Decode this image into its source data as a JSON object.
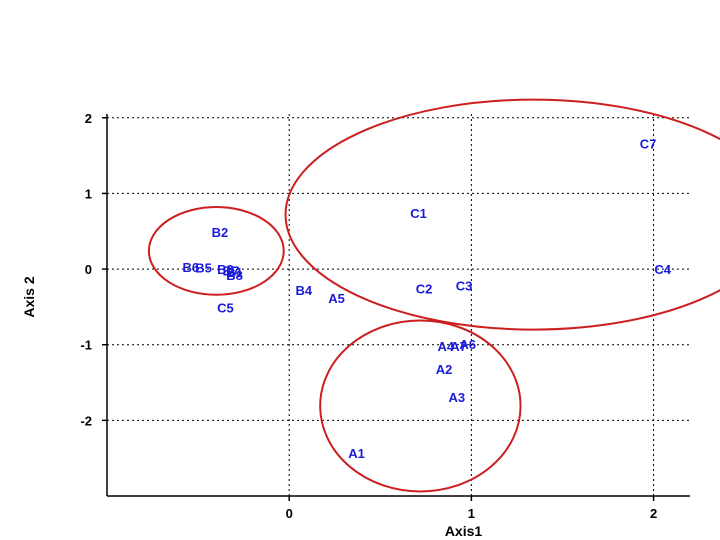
{
  "chart_data": {
    "type": "scatter",
    "title": "",
    "xlabel": "Axis1",
    "ylabel": "Axis 2",
    "xlim": [
      -1,
      2.2
    ],
    "ylim": [
      -3,
      2.05
    ],
    "xticks": [
      0,
      1,
      2
    ],
    "yticks": [
      -2,
      -1,
      0,
      1,
      2
    ],
    "grid": true,
    "points": [
      {
        "label": "C7",
        "x": 1.97,
        "y": 1.66
      },
      {
        "label": "C1",
        "x": 0.71,
        "y": 0.74
      },
      {
        "label": "B2",
        "x": -0.38,
        "y": 0.49
      },
      {
        "label": "B6",
        "x": -0.54,
        "y": 0.03
      },
      {
        "label": "B5",
        "x": -0.47,
        "y": 0.02
      },
      {
        "label": "B3",
        "x": -0.35,
        "y": 0.0
      },
      {
        "label": "B7",
        "x": -0.32,
        "y": -0.02
      },
      {
        "label": "B1",
        "x": -0.3,
        "y": -0.04
      },
      {
        "label": "B8",
        "x": -0.3,
        "y": -0.08
      },
      {
        "label": "C4",
        "x": 2.05,
        "y": 0.0
      },
      {
        "label": "C3",
        "x": 0.96,
        "y": -0.22
      },
      {
        "label": "C2",
        "x": 0.74,
        "y": -0.26
      },
      {
        "label": "B4",
        "x": 0.08,
        "y": -0.28
      },
      {
        "label": "A5",
        "x": 0.26,
        "y": -0.38
      },
      {
        "label": "C5",
        "x": -0.35,
        "y": -0.51
      },
      {
        "label": "A4",
        "x": 0.86,
        "y": -1.02
      },
      {
        "label": "A7",
        "x": 0.93,
        "y": -1.02
      },
      {
        "label": "A6",
        "x": 0.98,
        "y": -0.99
      },
      {
        "label": "A2",
        "x": 0.85,
        "y": -1.32
      },
      {
        "label": "A3",
        "x": 0.92,
        "y": -1.69
      },
      {
        "label": "A1",
        "x": 0.37,
        "y": -2.43
      }
    ],
    "clusters": [
      {
        "cx": 1.34,
        "cy": 0.72,
        "rx": 1.36,
        "ry": 1.52
      },
      {
        "cx": -0.4,
        "cy": 0.24,
        "rx": 0.37,
        "ry": 0.58
      },
      {
        "cx": 0.72,
        "cy": -1.81,
        "rx": 0.55,
        "ry": 1.13
      }
    ],
    "colors": {
      "points": "#1a1adc",
      "clusters": "#cc1f1f",
      "grid": "#000000"
    }
  }
}
